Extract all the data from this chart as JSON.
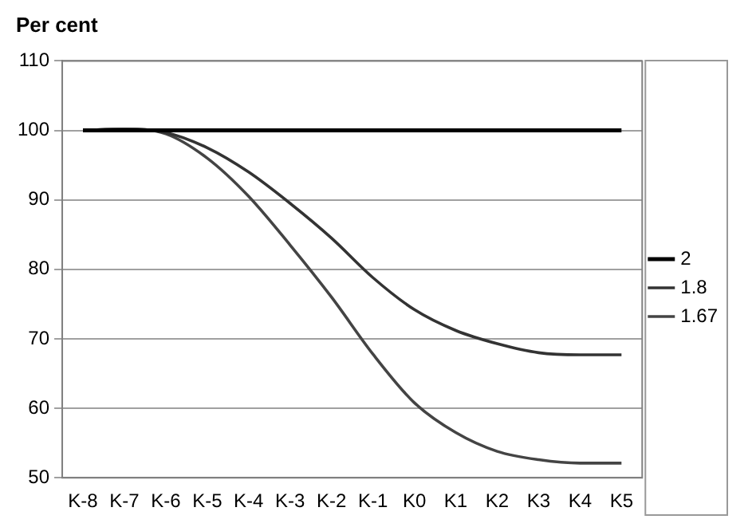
{
  "chart_data": {
    "type": "line",
    "ylabel": "Per cent",
    "categories": [
      "K-8",
      "K-7",
      "K-6",
      "K-5",
      "K-4",
      "K-3",
      "K-2",
      "K-1",
      "K0",
      "K1",
      "K2",
      "K3",
      "K4",
      "K5"
    ],
    "series": [
      {
        "name": "2",
        "color": "#000000",
        "values": [
          100,
          100,
          100,
          100,
          100,
          100,
          100,
          100,
          100,
          100,
          100,
          100,
          100,
          100
        ]
      },
      {
        "name": "1.8",
        "color": "#333333",
        "values": [
          100,
          100.2,
          99.7,
          97.5,
          94,
          89.5,
          84.5,
          78.8,
          74.2,
          71.2,
          69.3,
          68,
          67.7,
          67.7
        ]
      },
      {
        "name": "1.67",
        "color": "#444444",
        "values": [
          100,
          100.2,
          99.5,
          96,
          90.5,
          83.5,
          76,
          67.8,
          60.8,
          56.5,
          53.8,
          52.6,
          52.1,
          52.1
        ]
      }
    ],
    "ylim": [
      50,
      110
    ],
    "yticks": [
      50,
      60,
      70,
      80,
      90,
      100,
      110
    ],
    "grid": "y",
    "legend": "right",
    "marker": "none",
    "line_style": "solid"
  }
}
